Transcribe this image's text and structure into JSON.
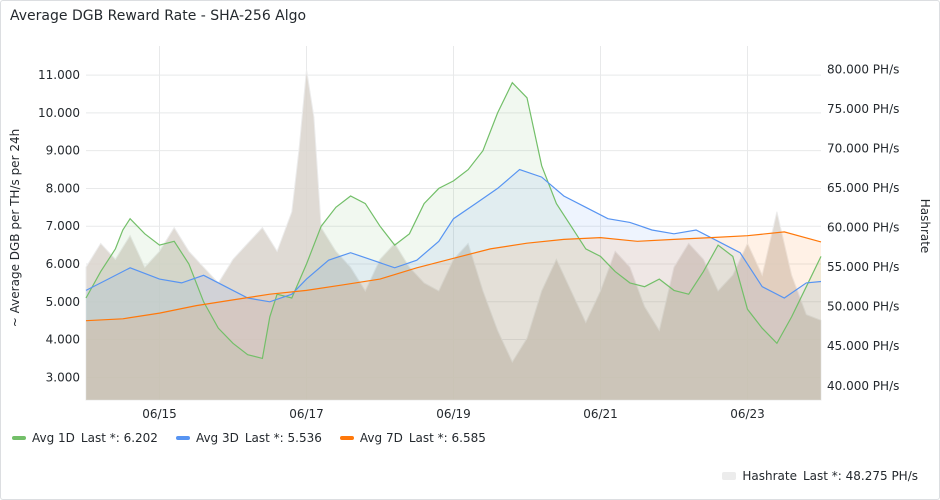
{
  "panel": {
    "title": "Average DGB Reward Rate - SHA-256 Algo"
  },
  "chart_data": {
    "type": "line",
    "title": "Average DGB Reward Rate - SHA-256 Algo",
    "xlabel": "",
    "ylabel": "~ Average DGB per TH/s per 24h",
    "y2label": "Hashrate",
    "x_ticks": [
      "06/15",
      "06/17",
      "06/19",
      "06/21",
      "06/23"
    ],
    "x_range": [
      14.0,
      24.0
    ],
    "x_tick_values": [
      15,
      17,
      19,
      21,
      23
    ],
    "y_ticks": [
      "3.000",
      "4.000",
      "5.000",
      "6.000",
      "7.000",
      "8.000",
      "9.000",
      "10.000",
      "11.000"
    ],
    "y_tick_values": [
      3,
      4,
      5,
      6,
      7,
      8,
      9,
      10,
      11
    ],
    "y_range": [
      2.4,
      11.4
    ],
    "y2_ticks": [
      "40.000 PH/s",
      "45.000 PH/s",
      "50.000 PH/s",
      "55.000 PH/s",
      "60.000 PH/s",
      "65.000 PH/s",
      "70.000 PH/s",
      "75.000 PH/s",
      "80.000 PH/s"
    ],
    "y2_tick_values": [
      40,
      45,
      50,
      55,
      60,
      65,
      70,
      75,
      80
    ],
    "y2_range": [
      38.2,
      81.2
    ],
    "grid": true,
    "colors": {
      "avg1d": "#73bf69",
      "avg3d": "#5794f2",
      "avg7d": "#ff780a",
      "hashrate": "#bdb5ae"
    },
    "series": [
      {
        "name": "Avg 1D",
        "last_label": "Last *: 6.202",
        "axis": "left",
        "x": [
          14.0,
          14.2,
          14.4,
          14.5,
          14.6,
          14.8,
          15.0,
          15.2,
          15.4,
          15.6,
          15.8,
          16.0,
          16.2,
          16.4,
          16.5,
          16.6,
          16.8,
          17.0,
          17.2,
          17.4,
          17.6,
          17.8,
          18.0,
          18.2,
          18.4,
          18.6,
          18.8,
          19.0,
          19.2,
          19.4,
          19.6,
          19.8,
          20.0,
          20.2,
          20.4,
          20.6,
          20.8,
          21.0,
          21.2,
          21.4,
          21.6,
          21.8,
          22.0,
          22.2,
          22.4,
          22.6,
          22.8,
          23.0,
          23.2,
          23.4,
          23.6,
          23.8,
          24.0
        ],
        "values": [
          5.1,
          5.8,
          6.4,
          6.9,
          7.2,
          6.8,
          6.5,
          6.6,
          6.0,
          5.0,
          4.3,
          3.9,
          3.6,
          3.5,
          4.6,
          5.2,
          5.1,
          6.0,
          7.0,
          7.5,
          7.8,
          7.6,
          7.0,
          6.5,
          6.8,
          7.6,
          8.0,
          8.2,
          8.5,
          9.0,
          10.0,
          10.8,
          10.4,
          8.6,
          7.6,
          7.0,
          6.4,
          6.2,
          5.8,
          5.5,
          5.4,
          5.6,
          5.3,
          5.2,
          5.8,
          6.5,
          6.2,
          4.8,
          4.3,
          3.9,
          4.6,
          5.4,
          6.2
        ]
      },
      {
        "name": "Avg 3D",
        "last_label": "Last *: 5.536",
        "axis": "left",
        "x": [
          14.0,
          14.3,
          14.6,
          15.0,
          15.3,
          15.6,
          15.9,
          16.2,
          16.5,
          16.8,
          17.0,
          17.3,
          17.6,
          17.9,
          18.2,
          18.5,
          18.8,
          19.0,
          19.3,
          19.6,
          19.9,
          20.2,
          20.5,
          20.8,
          21.1,
          21.4,
          21.7,
          22.0,
          22.3,
          22.6,
          22.9,
          23.2,
          23.5,
          23.8,
          24.0
        ],
        "values": [
          5.3,
          5.6,
          5.9,
          5.6,
          5.5,
          5.7,
          5.4,
          5.1,
          5.0,
          5.2,
          5.6,
          6.1,
          6.3,
          6.1,
          5.9,
          6.1,
          6.6,
          7.2,
          7.6,
          8.0,
          8.5,
          8.3,
          7.8,
          7.5,
          7.2,
          7.1,
          6.9,
          6.8,
          6.9,
          6.6,
          6.3,
          5.4,
          5.1,
          5.5,
          5.536
        ]
      },
      {
        "name": "Avg 7D",
        "last_label": "Last *: 6.585",
        "axis": "left",
        "x": [
          14.0,
          14.5,
          15.0,
          15.5,
          16.0,
          16.5,
          17.0,
          17.5,
          18.0,
          18.5,
          19.0,
          19.5,
          20.0,
          20.5,
          21.0,
          21.5,
          22.0,
          22.5,
          23.0,
          23.5,
          24.0
        ],
        "values": [
          4.5,
          4.55,
          4.7,
          4.9,
          5.05,
          5.2,
          5.3,
          5.45,
          5.6,
          5.9,
          6.15,
          6.4,
          6.55,
          6.65,
          6.7,
          6.6,
          6.65,
          6.7,
          6.75,
          6.85,
          6.585
        ]
      },
      {
        "name": "Hashrate",
        "last_label": "Last *: 48.275 PH/s",
        "axis": "right",
        "x": [
          14.0,
          14.2,
          14.4,
          14.6,
          14.8,
          15.0,
          15.2,
          15.4,
          15.6,
          15.8,
          16.0,
          16.2,
          16.4,
          16.6,
          16.8,
          16.9,
          17.0,
          17.1,
          17.2,
          17.4,
          17.6,
          17.8,
          18.0,
          18.2,
          18.4,
          18.6,
          18.8,
          19.0,
          19.2,
          19.4,
          19.6,
          19.8,
          20.0,
          20.2,
          20.4,
          20.6,
          20.8,
          21.0,
          21.2,
          21.4,
          21.6,
          21.8,
          22.0,
          22.2,
          22.4,
          22.6,
          22.8,
          23.0,
          23.2,
          23.4,
          23.6,
          23.8,
          24.0
        ],
        "values": [
          55,
          58,
          56,
          59,
          55,
          57,
          60,
          57,
          55,
          53,
          56,
          58,
          60,
          57,
          62,
          70,
          80,
          74,
          60,
          57,
          55,
          52,
          56,
          58,
          55,
          53,
          52,
          56,
          58,
          52,
          47,
          43,
          46,
          52,
          56,
          52,
          48,
          52,
          57,
          55,
          50,
          47,
          55,
          58,
          56,
          52,
          54,
          58,
          54,
          62,
          54,
          49,
          48.275
        ]
      }
    ]
  }
}
